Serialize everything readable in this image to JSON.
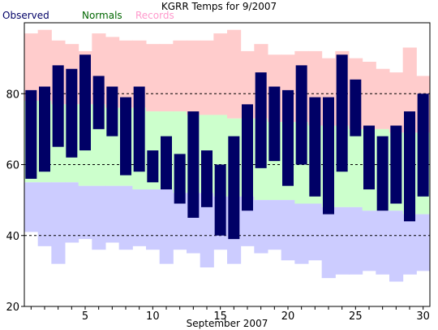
{
  "chart_data": {
    "type": "bar",
    "title": "KGRR Temps for 9/2007",
    "xlabel": "September 2007",
    "ylabel": "",
    "ylim": [
      20,
      100
    ],
    "xlim": [
      0.5,
      30.5
    ],
    "grid_lines": [
      40,
      60,
      80
    ],
    "x_ticks": [
      5,
      10,
      15,
      20,
      25,
      30
    ],
    "y_ticks": [
      20,
      40,
      60,
      80
    ],
    "legend": [
      "Observed",
      "Normals",
      "Records"
    ],
    "legend_position": "top-left",
    "colors": {
      "observed": "#000066",
      "normals": "#ccffcc",
      "record_high": "#ffcccc",
      "record_low": "#ccccff",
      "legend_observed": "#000066",
      "legend_normals": "#006600",
      "legend_records": "#ff99cc",
      "gridline": "#000000"
    },
    "days": [
      1,
      2,
      3,
      4,
      5,
      6,
      7,
      8,
      9,
      10,
      11,
      12,
      13,
      14,
      15,
      16,
      17,
      18,
      19,
      20,
      21,
      22,
      23,
      24,
      25,
      26,
      27,
      28,
      29,
      30
    ],
    "observed_high": [
      81,
      82,
      88,
      87,
      91,
      85,
      82,
      79,
      82,
      64,
      68,
      63,
      75,
      64,
      60,
      68,
      77,
      86,
      82,
      81,
      88,
      79,
      79,
      91,
      84,
      71,
      68,
      71,
      75,
      80
    ],
    "observed_low": [
      56,
      58,
      65,
      62,
      64,
      70,
      68,
      57,
      58,
      55,
      53,
      49,
      45,
      48,
      40,
      39,
      47,
      59,
      61,
      54,
      60,
      51,
      46,
      58,
      68,
      53,
      47,
      49,
      44,
      51
    ],
    "normal_high": [
      78,
      78,
      77,
      77,
      77,
      77,
      76,
      76,
      76,
      75,
      75,
      75,
      74,
      74,
      74,
      73,
      73,
      73,
      72,
      72,
      72,
      71,
      71,
      71,
      70,
      70,
      70,
      69,
      69,
      69
    ],
    "normal_low": [
      55,
      55,
      55,
      55,
      54,
      54,
      54,
      54,
      53,
      53,
      53,
      52,
      52,
      52,
      51,
      51,
      51,
      50,
      50,
      50,
      49,
      49,
      48,
      48,
      48,
      47,
      47,
      47,
      46,
      46
    ],
    "record_high": [
      97,
      98,
      95,
      94,
      92,
      97,
      96,
      95,
      95,
      94,
      94,
      95,
      95,
      95,
      97,
      98,
      92,
      94,
      91,
      91,
      92,
      92,
      90,
      92,
      90,
      89,
      87,
      86,
      93,
      85
    ],
    "record_low": [
      41,
      37,
      32,
      38,
      39,
      36,
      38,
      36,
      37,
      36,
      32,
      36,
      35,
      31,
      36,
      32,
      37,
      35,
      36,
      33,
      32,
      33,
      28,
      29,
      29,
      30,
      29,
      27,
      29,
      30
    ]
  }
}
